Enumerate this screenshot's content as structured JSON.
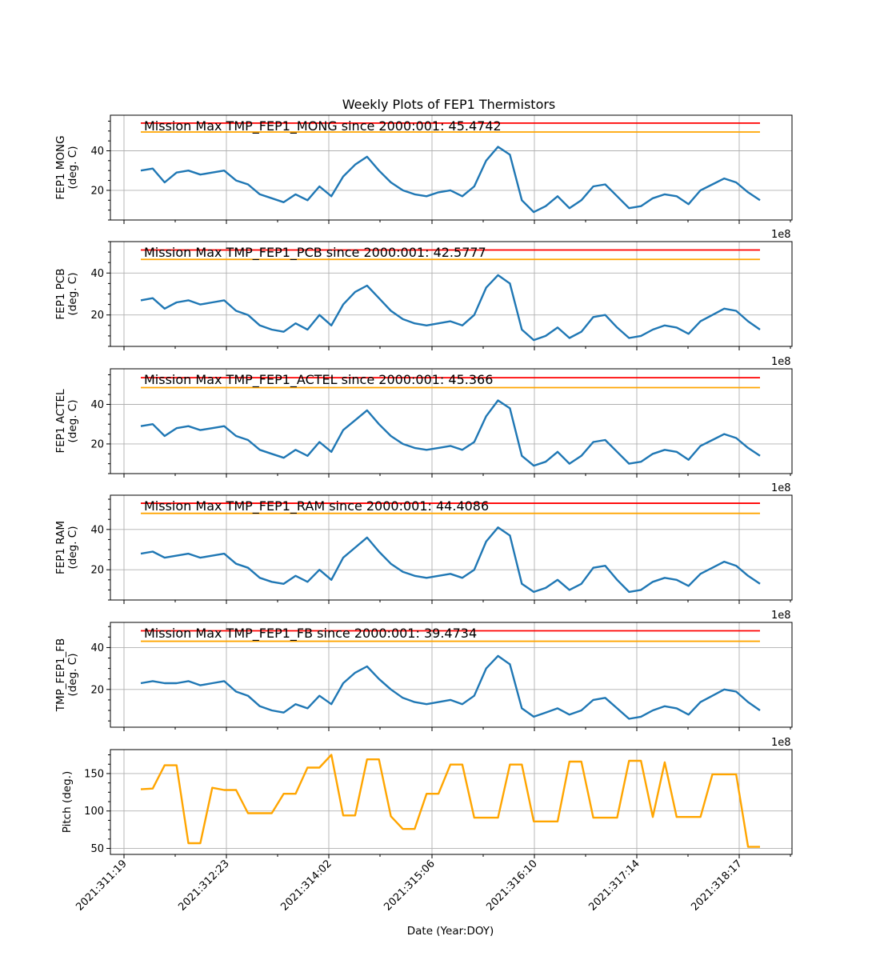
{
  "chart_data": [
    {
      "type": "line",
      "title": "Weekly Plots of FEP1 Thermistors",
      "ylabel": [
        "FEP1 MONG",
        "(deg. C)"
      ],
      "ylim": [
        5,
        58
      ],
      "yticks": [
        20,
        40
      ],
      "annotation": "Mission Max TMP_FEP1_MONG since 2000:001: 45.4742",
      "offset_text": "",
      "hlines": [
        {
          "y": 54,
          "color": "#ff0000"
        },
        {
          "y": 49.5,
          "color": "#ffa500"
        }
      ],
      "series": [
        {
          "color": "#1f77b4",
          "x": [
            2021.3119,
            2021.312,
            2021.3121,
            2021.3125,
            2021.3128,
            2021.313,
            2021.3133,
            2021.3135,
            2021.3138,
            2021.314,
            2021.3145,
            2021.315,
            2021.3155,
            2021.316,
            2021.3162,
            2021.3165,
            2021.3168,
            2021.317,
            2021.3175,
            2021.318,
            2021.3185,
            2021.319,
            2021.3195,
            2021.32,
            2021.3205,
            2021.321,
            2021.3215,
            2021.322,
            2021.3222,
            2021.3225,
            2021.323,
            2021.3235,
            2021.324,
            2021.3245,
            2021.325,
            2021.3255,
            2021.326,
            2021.3265,
            2021.327,
            2021.3275,
            2021.328,
            2021.3285,
            2021.329,
            2021.3295,
            2021.33,
            2021.3305,
            2021.331,
            2021.3315,
            2021.332,
            2021.3325,
            2021.333,
            2021.3335,
            2021.334
          ],
          "y": [
            30,
            31,
            24,
            29,
            30,
            28,
            29,
            30,
            25,
            23,
            18,
            16,
            14,
            18,
            15,
            22,
            17,
            27,
            33,
            37,
            30,
            24,
            20,
            18,
            17,
            19,
            20,
            17,
            22,
            35,
            42,
            38,
            15,
            9,
            12,
            17,
            11,
            15,
            22,
            23,
            17,
            11,
            12,
            16,
            18,
            17,
            13,
            20,
            23,
            26,
            24,
            19,
            15
          ]
        }
      ]
    },
    {
      "type": "line",
      "title": "",
      "ylabel": [
        "FEP1 PCB",
        "(deg. C)"
      ],
      "ylim": [
        5,
        55
      ],
      "yticks": [
        20,
        40
      ],
      "annotation": "Mission Max TMP_FEP1_PCB since 2000:001: 42.5777",
      "offset_text": "1e8",
      "hlines": [
        {
          "y": 51,
          "color": "#ff0000"
        },
        {
          "y": 46.5,
          "color": "#ffa500"
        }
      ],
      "series": [
        {
          "color": "#1f77b4",
          "x": [
            2021.3119,
            2021.312,
            2021.3121,
            2021.3125,
            2021.3128,
            2021.313,
            2021.3133,
            2021.3135,
            2021.3138,
            2021.314,
            2021.3145,
            2021.315,
            2021.3155,
            2021.316,
            2021.3162,
            2021.3165,
            2021.3168,
            2021.317,
            2021.3175,
            2021.318,
            2021.3185,
            2021.319,
            2021.3195,
            2021.32,
            2021.3205,
            2021.321,
            2021.3215,
            2021.322,
            2021.3222,
            2021.3225,
            2021.323,
            2021.3235,
            2021.324,
            2021.3245,
            2021.325,
            2021.3255,
            2021.326,
            2021.3265,
            2021.327,
            2021.3275,
            2021.328,
            2021.3285,
            2021.329,
            2021.3295,
            2021.33,
            2021.3305,
            2021.331,
            2021.3315,
            2021.332,
            2021.3325,
            2021.333,
            2021.3335,
            2021.334
          ],
          "y": [
            27,
            28,
            23,
            26,
            27,
            25,
            26,
            27,
            22,
            20,
            15,
            13,
            12,
            16,
            13,
            20,
            15,
            25,
            31,
            34,
            28,
            22,
            18,
            16,
            15,
            16,
            17,
            15,
            20,
            33,
            39,
            35,
            13,
            8,
            10,
            14,
            9,
            12,
            19,
            20,
            14,
            9,
            10,
            13,
            15,
            14,
            11,
            17,
            20,
            23,
            22,
            17,
            13
          ]
        }
      ]
    },
    {
      "type": "line",
      "title": "",
      "ylabel": [
        "FEP1 ACTEL",
        "(deg. C)"
      ],
      "ylim": [
        5,
        58
      ],
      "yticks": [
        20,
        40
      ],
      "annotation": "Mission Max TMP_FEP1_ACTEL since 2000:001: 45.366",
      "offset_text": "1e8",
      "hlines": [
        {
          "y": 53.5,
          "color": "#ff0000"
        },
        {
          "y": 48.5,
          "color": "#ffa500"
        }
      ],
      "series": [
        {
          "color": "#1f77b4",
          "x": [
            2021.3119,
            2021.312,
            2021.3121,
            2021.3125,
            2021.3128,
            2021.313,
            2021.3133,
            2021.3135,
            2021.3138,
            2021.314,
            2021.3145,
            2021.315,
            2021.3155,
            2021.316,
            2021.3162,
            2021.3165,
            2021.3168,
            2021.317,
            2021.3175,
            2021.318,
            2021.3185,
            2021.319,
            2021.3195,
            2021.32,
            2021.3205,
            2021.321,
            2021.3215,
            2021.322,
            2021.3222,
            2021.3225,
            2021.323,
            2021.3235,
            2021.324,
            2021.3245,
            2021.325,
            2021.3255,
            2021.326,
            2021.3265,
            2021.327,
            2021.3275,
            2021.328,
            2021.3285,
            2021.329,
            2021.3295,
            2021.33,
            2021.3305,
            2021.331,
            2021.3315,
            2021.332,
            2021.3325,
            2021.333,
            2021.3335,
            2021.334
          ],
          "y": [
            29,
            30,
            24,
            28,
            29,
            27,
            28,
            29,
            24,
            22,
            17,
            15,
            13,
            17,
            14,
            21,
            16,
            27,
            32,
            37,
            30,
            24,
            20,
            18,
            17,
            18,
            19,
            17,
            21,
            34,
            42,
            38,
            14,
            9,
            11,
            16,
            10,
            14,
            21,
            22,
            16,
            10,
            11,
            15,
            17,
            16,
            12,
            19,
            22,
            25,
            23,
            18,
            14
          ]
        }
      ]
    },
    {
      "type": "line",
      "title": "",
      "ylabel": [
        "FEP1 RAM",
        "(deg. C)"
      ],
      "ylim": [
        5,
        57
      ],
      "yticks": [
        20,
        40
      ],
      "annotation": "Mission Max TMP_FEP1_RAM since 2000:001: 44.4086",
      "offset_text": "1e8",
      "hlines": [
        {
          "y": 53,
          "color": "#ff0000"
        },
        {
          "y": 48,
          "color": "#ffa500"
        }
      ],
      "series": [
        {
          "color": "#1f77b4",
          "x": [
            2021.3119,
            2021.312,
            2021.3121,
            2021.3125,
            2021.3128,
            2021.313,
            2021.3133,
            2021.3135,
            2021.3138,
            2021.314,
            2021.3145,
            2021.315,
            2021.3155,
            2021.316,
            2021.3162,
            2021.3165,
            2021.3168,
            2021.317,
            2021.3175,
            2021.318,
            2021.3185,
            2021.319,
            2021.3195,
            2021.32,
            2021.3205,
            2021.321,
            2021.3215,
            2021.322,
            2021.3222,
            2021.3225,
            2021.323,
            2021.3235,
            2021.324,
            2021.3245,
            2021.325,
            2021.3255,
            2021.326,
            2021.3265,
            2021.327,
            2021.3275,
            2021.328,
            2021.3285,
            2021.329,
            2021.3295,
            2021.33,
            2021.3305,
            2021.331,
            2021.3315,
            2021.332,
            2021.3325,
            2021.333,
            2021.3335,
            2021.334
          ],
          "y": [
            28,
            29,
            26,
            27,
            28,
            26,
            27,
            28,
            23,
            21,
            16,
            14,
            13,
            17,
            14,
            20,
            15,
            26,
            31,
            36,
            29,
            23,
            19,
            17,
            16,
            17,
            18,
            16,
            20,
            34,
            41,
            37,
            13,
            9,
            11,
            15,
            10,
            13,
            21,
            22,
            15,
            9,
            10,
            14,
            16,
            15,
            12,
            18,
            21,
            24,
            22,
            17,
            13
          ]
        }
      ]
    },
    {
      "type": "line",
      "title": "",
      "ylabel": [
        "TMP_FEP1_FB",
        "(deg. C)"
      ],
      "ylim": [
        2,
        52
      ],
      "yticks": [
        20,
        40
      ],
      "annotation": "Mission Max TMP_FEP1_FB since 2000:001: 39.4734",
      "offset_text": "1e8",
      "hlines": [
        {
          "y": 48,
          "color": "#ff0000"
        },
        {
          "y": 43,
          "color": "#ffa500"
        }
      ],
      "series": [
        {
          "color": "#1f77b4",
          "x": [
            2021.3119,
            2021.312,
            2021.3121,
            2021.3125,
            2021.3128,
            2021.313,
            2021.3133,
            2021.3135,
            2021.3138,
            2021.314,
            2021.3145,
            2021.315,
            2021.3155,
            2021.316,
            2021.3162,
            2021.3165,
            2021.3168,
            2021.317,
            2021.3175,
            2021.318,
            2021.3185,
            2021.319,
            2021.3195,
            2021.32,
            2021.3205,
            2021.321,
            2021.3215,
            2021.322,
            2021.3222,
            2021.3225,
            2021.323,
            2021.3235,
            2021.324,
            2021.3245,
            2021.325,
            2021.3255,
            2021.326,
            2021.3265,
            2021.327,
            2021.3275,
            2021.328,
            2021.3285,
            2021.329,
            2021.3295,
            2021.33,
            2021.3305,
            2021.331,
            2021.3315,
            2021.332,
            2021.3325,
            2021.333,
            2021.3335,
            2021.334
          ],
          "y": [
            23,
            24,
            23,
            23,
            24,
            22,
            23,
            24,
            19,
            17,
            12,
            10,
            9,
            13,
            11,
            17,
            13,
            23,
            28,
            31,
            25,
            20,
            16,
            14,
            13,
            14,
            15,
            13,
            17,
            30,
            36,
            32,
            11,
            7,
            9,
            11,
            8,
            10,
            15,
            16,
            11,
            6,
            7,
            10,
            12,
            11,
            8,
            14,
            17,
            20,
            19,
            14,
            10
          ]
        }
      ]
    },
    {
      "type": "line",
      "title": "",
      "ylabel": [
        "Pitch (deg.)"
      ],
      "xlabel": "Date (Year:DOY)",
      "ylim": [
        42,
        182
      ],
      "yticks": [
        50,
        100,
        150
      ],
      "annotation": "",
      "offset_text": "1e8",
      "hlines": [],
      "x_tick_labels": [
        "2021:311:19",
        "2021:312:23",
        "2021:314:02",
        "2021:315:06",
        "2021:316:10",
        "2021:317:14",
        "2021:318:17"
      ],
      "series": [
        {
          "color": "#ffa500",
          "x": [
            2021.3119,
            2021.312,
            2021.3121,
            2021.3125,
            2021.3128,
            2021.313,
            2021.3133,
            2021.3135,
            2021.3138,
            2021.314,
            2021.3145,
            2021.315,
            2021.3155,
            2021.316,
            2021.3162,
            2021.3165,
            2021.3168,
            2021.317,
            2021.3175,
            2021.318,
            2021.3185,
            2021.319,
            2021.3195,
            2021.32,
            2021.3205,
            2021.321,
            2021.3215,
            2021.322,
            2021.3222,
            2021.3225,
            2021.323,
            2021.3235,
            2021.324,
            2021.3245,
            2021.325,
            2021.3255,
            2021.326,
            2021.3265,
            2021.327,
            2021.3275,
            2021.328,
            2021.3285,
            2021.329,
            2021.3295,
            2021.33,
            2021.3305,
            2021.331,
            2021.3315,
            2021.332,
            2021.3325,
            2021.333,
            2021.3335,
            2021.334
          ],
          "y": [
            129,
            130,
            161,
            161,
            57,
            57,
            131,
            128,
            128,
            97,
            97,
            97,
            123,
            123,
            158,
            158,
            175,
            94,
            94,
            169,
            169,
            93,
            76,
            76,
            123,
            123,
            162,
            162,
            91,
            91,
            91,
            162,
            162,
            86,
            86,
            86,
            166,
            166,
            91,
            91,
            91,
            167,
            167,
            92,
            165,
            92,
            92,
            92,
            149,
            149,
            149,
            52,
            52
          ]
        }
      ]
    }
  ]
}
